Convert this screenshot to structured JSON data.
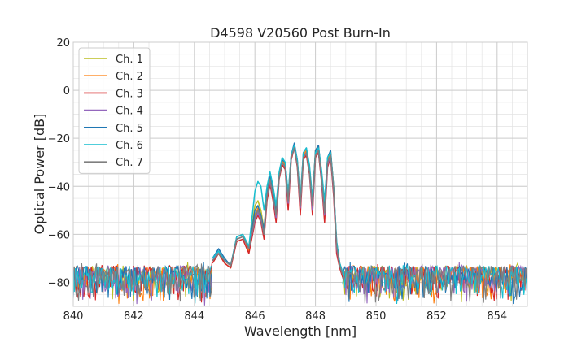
{
  "chart_data": {
    "type": "line",
    "title": "D4598 V20560 Post Burn-In",
    "xlabel": "Wavelength [nm]",
    "ylabel": "Optical Power [dB]",
    "xlim": [
      840,
      855
    ],
    "ylim": [
      -90,
      20
    ],
    "xticks": [
      840,
      842,
      844,
      846,
      848,
      850,
      852,
      854
    ],
    "yticks": [
      -80,
      -60,
      -40,
      -20,
      0,
      20
    ],
    "grid": true,
    "legend_position": "top-left",
    "noise_floor_db": [
      -90,
      -73
    ],
    "series": [
      {
        "name": "Ch. 1",
        "color": "#bcbd22",
        "x": [
          844.6,
          844.8,
          845.0,
          845.2,
          845.4,
          845.6,
          845.8,
          846.0,
          846.1,
          846.2,
          846.3,
          846.4,
          846.5,
          846.6,
          846.7,
          846.8,
          846.9,
          847.0,
          847.1,
          847.2,
          847.3,
          847.4,
          847.5,
          847.6,
          847.7,
          847.8,
          847.9,
          848.0,
          848.1,
          848.2,
          848.3,
          848.4,
          848.5,
          848.6,
          848.7,
          848.8,
          848.9
        ],
        "y": [
          -71,
          -67,
          -71,
          -73,
          -62,
          -61,
          -66,
          -48,
          -46,
          -50,
          -58,
          -42,
          -36,
          -42,
          -50,
          -36,
          -30,
          -31,
          -44,
          -28,
          -24,
          -31,
          -48,
          -28,
          -26,
          -34,
          -48,
          -26,
          -24,
          -36,
          -50,
          -30,
          -26,
          -42,
          -66,
          -73,
          -77
        ]
      },
      {
        "name": "Ch. 2",
        "color": "#ff7f0e",
        "x": [
          844.6,
          844.8,
          845.0,
          845.2,
          845.4,
          845.6,
          845.8,
          846.0,
          846.1,
          846.2,
          846.3,
          846.4,
          846.5,
          846.6,
          846.7,
          846.8,
          846.9,
          847.0,
          847.1,
          847.2,
          847.3,
          847.4,
          847.5,
          847.6,
          847.7,
          847.8,
          847.9,
          848.0,
          848.1,
          848.2,
          848.3,
          848.4,
          848.5,
          848.6,
          848.7,
          848.8,
          848.9
        ],
        "y": [
          -71,
          -68,
          -72,
          -74,
          -61,
          -60,
          -67,
          -52,
          -49,
          -53,
          -59,
          -43,
          -37,
          -43,
          -51,
          -35,
          -29,
          -31,
          -45,
          -27,
          -23,
          -30,
          -47,
          -27,
          -25,
          -33,
          -47,
          -25,
          -23,
          -35,
          -49,
          -29,
          -25,
          -40,
          -64,
          -72,
          -76
        ]
      },
      {
        "name": "Ch. 3",
        "color": "#d62728",
        "x": [
          844.6,
          844.8,
          845.0,
          845.2,
          845.4,
          845.6,
          845.8,
          846.0,
          846.1,
          846.2,
          846.3,
          846.4,
          846.5,
          846.6,
          846.7,
          846.8,
          846.9,
          847.0,
          847.1,
          847.2,
          847.3,
          847.4,
          847.5,
          847.6,
          847.7,
          847.8,
          847.9,
          848.0,
          848.1,
          848.2,
          848.3,
          848.4,
          848.5,
          848.6,
          848.7,
          848.8,
          848.9
        ],
        "y": [
          -72,
          -68,
          -72,
          -74,
          -63,
          -62,
          -68,
          -55,
          -52,
          -55,
          -62,
          -46,
          -39,
          -46,
          -55,
          -37,
          -31,
          -33,
          -50,
          -29,
          -24,
          -32,
          -52,
          -29,
          -27,
          -35,
          -52,
          -28,
          -26,
          -38,
          -55,
          -32,
          -28,
          -44,
          -68,
          -74,
          -78
        ]
      },
      {
        "name": "Ch. 4",
        "color": "#9467bd",
        "x": [
          844.6,
          844.8,
          845.0,
          845.2,
          845.4,
          845.6,
          845.8,
          846.0,
          846.1,
          846.2,
          846.3,
          846.4,
          846.5,
          846.6,
          846.7,
          846.8,
          846.9,
          847.0,
          847.1,
          847.2,
          847.3,
          847.4,
          847.5,
          847.6,
          847.7,
          847.8,
          847.9,
          848.0,
          848.1,
          848.2,
          848.3,
          848.4,
          848.5,
          848.6,
          848.7,
          848.8,
          848.9
        ],
        "y": [
          -71,
          -67,
          -71,
          -73,
          -62,
          -61,
          -66,
          -54,
          -51,
          -54,
          -60,
          -44,
          -38,
          -44,
          -53,
          -36,
          -30,
          -32,
          -47,
          -28,
          -24,
          -31,
          -49,
          -28,
          -26,
          -34,
          -50,
          -27,
          -25,
          -37,
          -52,
          -31,
          -27,
          -42,
          -66,
          -73,
          -77
        ]
      },
      {
        "name": "Ch. 5",
        "color": "#1f77b4",
        "x": [
          844.6,
          844.8,
          845.0,
          845.2,
          845.4,
          845.6,
          845.8,
          846.0,
          846.1,
          846.2,
          846.3,
          846.4,
          846.5,
          846.6,
          846.7,
          846.8,
          846.9,
          847.0,
          847.1,
          847.2,
          847.3,
          847.4,
          847.5,
          847.6,
          847.7,
          847.8,
          847.9,
          848.0,
          848.1,
          848.2,
          848.3,
          848.4,
          848.5,
          848.6,
          848.7,
          848.8,
          848.9
        ],
        "y": [
          -70,
          -66,
          -70,
          -73,
          -61,
          -60,
          -66,
          -50,
          -48,
          -52,
          -58,
          -43,
          -36,
          -43,
          -51,
          -35,
          -29,
          -30,
          -44,
          -27,
          -22,
          -29,
          -46,
          -26,
          -24,
          -32,
          -46,
          -25,
          -23,
          -34,
          -48,
          -28,
          -25,
          -40,
          -63,
          -72,
          -76
        ]
      },
      {
        "name": "Ch. 6",
        "color": "#17becf",
        "x": [
          844.6,
          844.8,
          845.0,
          845.2,
          845.4,
          845.6,
          845.8,
          846.0,
          846.1,
          846.2,
          846.3,
          846.4,
          846.5,
          846.6,
          846.7,
          846.8,
          846.9,
          847.0,
          847.1,
          847.2,
          847.3,
          847.4,
          847.5,
          847.6,
          847.7,
          847.8,
          847.9,
          848.0,
          848.1,
          848.2,
          848.3,
          848.4,
          848.5,
          848.6,
          848.7,
          848.8,
          848.9
        ],
        "y": [
          -70,
          -67,
          -71,
          -73,
          -61,
          -60,
          -65,
          -42,
          -38,
          -40,
          -50,
          -40,
          -34,
          -40,
          -48,
          -34,
          -28,
          -30,
          -43,
          -27,
          -23,
          -29,
          -45,
          -26,
          -24,
          -31,
          -45,
          -26,
          -24,
          -33,
          -46,
          -28,
          -26,
          -40,
          -63,
          -72,
          -76
        ]
      },
      {
        "name": "Ch. 7",
        "color": "#7f7f7f",
        "x": [
          844.6,
          844.8,
          845.0,
          845.2,
          845.4,
          845.6,
          845.8,
          846.0,
          846.1,
          846.2,
          846.3,
          846.4,
          846.5,
          846.6,
          846.7,
          846.8,
          846.9,
          847.0,
          847.1,
          847.2,
          847.3,
          847.4,
          847.5,
          847.6,
          847.7,
          847.8,
          847.9,
          848.0,
          848.1,
          848.2,
          848.3,
          848.4,
          848.5,
          848.6,
          848.7,
          848.8,
          848.9
        ],
        "y": [
          -71,
          -68,
          -71,
          -73,
          -62,
          -61,
          -66,
          -53,
          -50,
          -53,
          -60,
          -44,
          -37,
          -44,
          -52,
          -36,
          -30,
          -32,
          -46,
          -28,
          -24,
          -31,
          -48,
          -28,
          -26,
          -34,
          -48,
          -27,
          -25,
          -36,
          -51,
          -30,
          -27,
          -41,
          -65,
          -73,
          -77
        ]
      }
    ]
  }
}
